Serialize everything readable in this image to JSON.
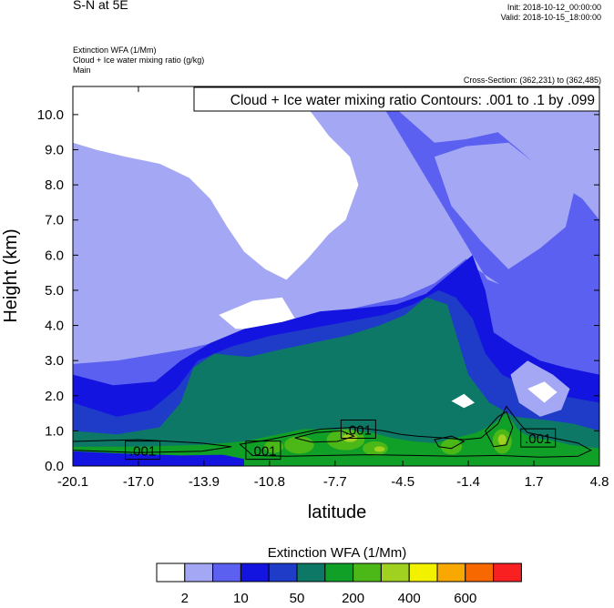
{
  "header": {
    "plot_title": "S-N at 5E",
    "init_time": "Init: 2018-10-12_00:00:00",
    "valid_time": "Valid: 2018-10-15_18:00:00",
    "field_line1": "Extinction WFA   (1/Mm)",
    "field_line2": "Cloud + Ice water mixing ratio   (g/kg)",
    "field_line3": "Main",
    "cross_section": "Cross-Section: (362,231) to (362,485)"
  },
  "contour_info": "Cloud + Ice water mixing ratio Contours: .001 to .1 by .099",
  "colors": {
    "white": "#ffffff",
    "lav": "#a4a8f4",
    "mid": "#5c60f0",
    "blue": "#1414e0",
    "royal": "#1e3cc8",
    "teal": "#0e7866",
    "green": "#10a028",
    "lime": "#4cb818",
    "yellowgreen": "#a0d020",
    "yellow": "#f2f200",
    "orange": "#f8a800",
    "darkorange": "#f86800",
    "red": "#f82020"
  },
  "chart_data": {
    "type": "heatmap",
    "title": "S-N at 5E",
    "xlabel": "latitude",
    "ylabel": "Height (km)",
    "xlim": [
      -20.1,
      4.8
    ],
    "ylim": [
      0.0,
      10.8
    ],
    "x_ticks": [
      "-20.1",
      "-17.0",
      "-13.9",
      "-10.8",
      "-7.7",
      "-4.5",
      "-1.4",
      "1.7",
      "4.8"
    ],
    "x_tick_values": [
      -20.1,
      -17.0,
      -13.9,
      -10.8,
      -7.7,
      -4.5,
      -1.4,
      1.7,
      4.8
    ],
    "y_ticks": [
      "0.0",
      "1.0",
      "2.0",
      "3.0",
      "4.0",
      "5.0",
      "6.0",
      "7.0",
      "8.0",
      "9.0",
      "10.0"
    ],
    "y_tick_values": [
      0,
      1,
      2,
      3,
      4,
      5,
      6,
      7,
      8,
      9,
      10
    ],
    "contour_labels": [
      {
        "text": ".001",
        "x": -16.8,
        "y": 0.45
      },
      {
        "text": ".001",
        "x": -11.1,
        "y": 0.45
      },
      {
        "text": ".001",
        "x": -6.6,
        "y": 1.05
      },
      {
        "text": ".001",
        "x": 1.9,
        "y": 0.8
      }
    ],
    "colorbar": {
      "title": "Extinction WFA  (1/Mm)",
      "colors": [
        "#ffffff",
        "#a4a8f4",
        "#5c60f0",
        "#1414e0",
        "#1e3cc8",
        "#0e7866",
        "#10a028",
        "#4cb818",
        "#a0d020",
        "#f2f200",
        "#f8a800",
        "#f86800",
        "#f82020"
      ],
      "tick_labels": [
        "2",
        "10",
        "50",
        "200",
        "400",
        "600"
      ]
    }
  }
}
